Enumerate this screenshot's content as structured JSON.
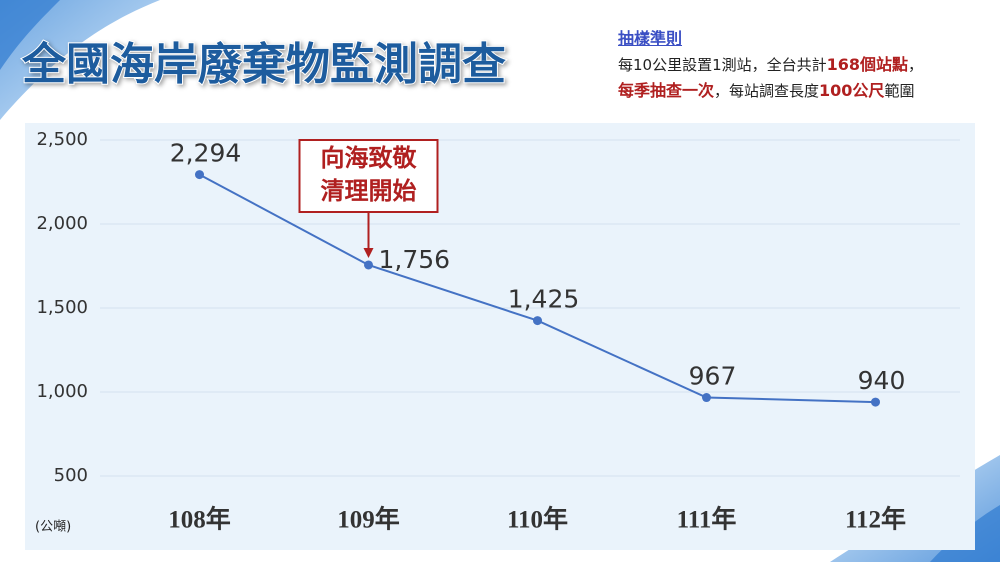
{
  "chart_data": {
    "type": "line",
    "title": "全國海岸廢棄物監測調查",
    "categories": [
      "108年",
      "109年",
      "110年",
      "111年",
      "112年"
    ],
    "values": [
      2294,
      1756,
      1425,
      967,
      940
    ],
    "value_labels": [
      "2,294",
      "1,756",
      "1,425",
      "967",
      "940"
    ],
    "color": "#4472c4",
    "ylim": [
      300,
      2600
    ],
    "yticks": [
      500,
      {
        "value": 1000,
        "label": "1,000"
      },
      {
        "value": 1500,
        "label": "1,500"
      },
      {
        "value": 2000,
        "label": "2,000"
      },
      {
        "value": 2500,
        "label": "2,500"
      }
    ],
    "grid": true,
    "unit_label": "(公噸)",
    "annotation": {
      "lines": [
        "向海致敬",
        "清理開始"
      ],
      "category": "109年"
    }
  },
  "sampling": {
    "heading": "抽樣準則",
    "line1": [
      "每10公里設置1測站，全台共計",
      "168個站點",
      "，"
    ],
    "line2": [
      "每季抽查一次",
      "，每站調查長度",
      "100公尺",
      "範圍"
    ]
  }
}
